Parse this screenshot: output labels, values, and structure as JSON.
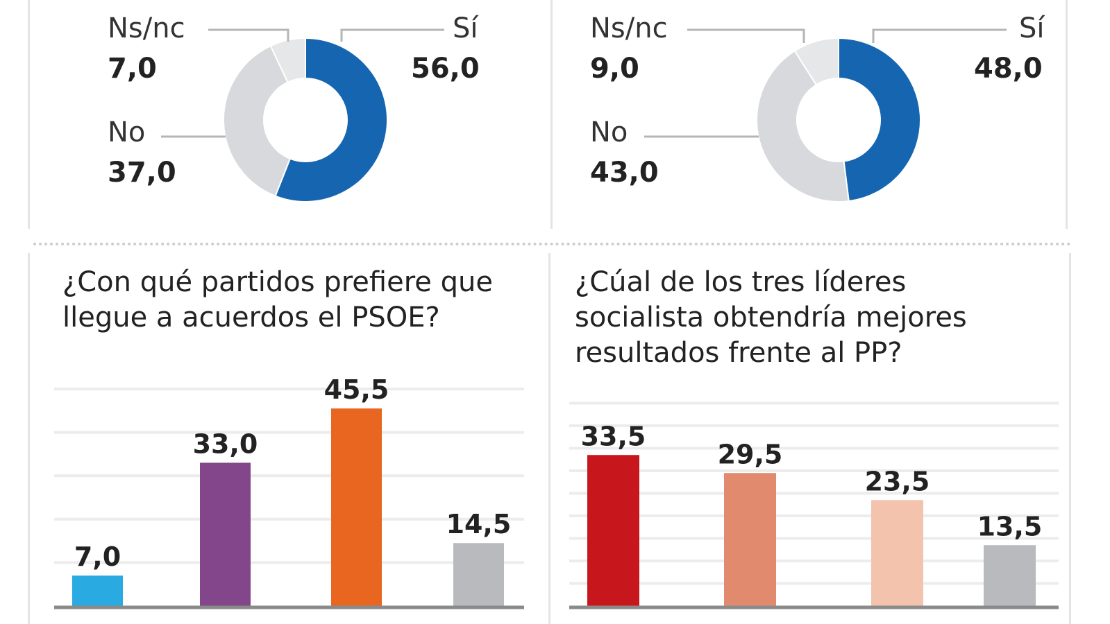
{
  "chart_data": [
    {
      "type": "pie",
      "variant": "donut",
      "slices": [
        {
          "label": "Sí",
          "value": 56.0,
          "display": "56,0",
          "color": "#1565b0"
        },
        {
          "label": "No",
          "value": 37.0,
          "display": "37,0",
          "color": "#d8d9dc"
        },
        {
          "label": "Ns/nc",
          "value": 7.0,
          "display": "7,0",
          "color": "#e6e7e9"
        }
      ]
    },
    {
      "type": "pie",
      "variant": "donut",
      "slices": [
        {
          "label": "Sí",
          "value": 48.0,
          "display": "48,0",
          "color": "#1565b0"
        },
        {
          "label": "No",
          "value": 43.0,
          "display": "43,0",
          "color": "#d8d9dc"
        },
        {
          "label": "Ns/nc",
          "value": 9.0,
          "display": "9,0",
          "color": "#e6e7e9"
        }
      ]
    },
    {
      "type": "bar",
      "title": "¿Con qué partidos prefiere que llegue a acuerdos el PSOE?",
      "values": [
        7.0,
        33.0,
        45.5,
        14.5
      ],
      "labels": [
        "7,0",
        "33,0",
        "45,5",
        "14,5"
      ],
      "colors": [
        "#29abe2",
        "#84468a",
        "#e8661f",
        "#b9babd"
      ],
      "grid": true
    },
    {
      "type": "bar",
      "title": "¿Cúal de los tres líderes socialista obtendría mejores resultados frente al PP?",
      "values": [
        33.5,
        29.5,
        23.5,
        13.5
      ],
      "labels": [
        "33,5",
        "29,5",
        "23,5",
        "13,5"
      ],
      "colors": [
        "#c8161d",
        "#e28a6e",
        "#f3c3ae",
        "#b9babd"
      ],
      "grid": true
    }
  ]
}
